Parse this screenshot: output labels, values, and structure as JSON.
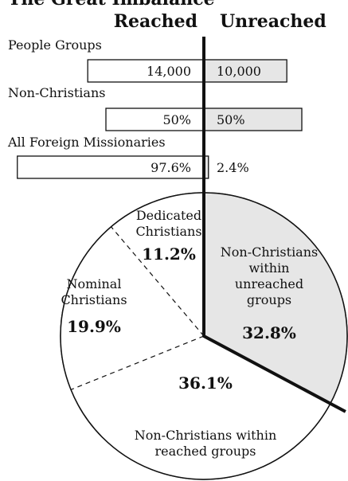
{
  "chart_data": [
    {
      "type": "bar",
      "title": "The Great Imbalance",
      "column_labels": {
        "left": "Reached",
        "right": "Unreached"
      },
      "categories": [
        "People Groups",
        "Non-Christians",
        "All Foreign Missionaries"
      ],
      "series": [
        {
          "name": "Reached",
          "values": [
            14000,
            50,
            97.6
          ],
          "labels": [
            "14,000",
            "50%",
            "97.6%"
          ]
        },
        {
          "name": "Unreached",
          "values": [
            10000,
            50,
            2.4
          ],
          "labels": [
            "10,000",
            "50%",
            "2.4%"
          ]
        }
      ],
      "colors": {
        "reached": "#ffffff",
        "unreached": "#e6e6e6",
        "stroke": "#111111"
      }
    },
    {
      "type": "pie",
      "slices": [
        {
          "label_lines": [
            "Non-Christians",
            "within",
            "unreached",
            "groups"
          ],
          "value": 32.8,
          "display": "32.8%",
          "shaded": true
        },
        {
          "label_lines": [
            "Non-Christians within",
            "reached groups"
          ],
          "value": 36.1,
          "display": "36.1%",
          "shaded": false
        },
        {
          "label_lines": [
            "Nominal",
            "Christians"
          ],
          "value": 19.9,
          "display": "19.9%",
          "shaded": false
        },
        {
          "label_lines": [
            "Dedicated",
            "Christians"
          ],
          "value": 11.2,
          "display": "11.2%",
          "shaded": false
        }
      ],
      "colors": {
        "shaded": "#e6e6e6",
        "plain": "#ffffff"
      }
    }
  ]
}
